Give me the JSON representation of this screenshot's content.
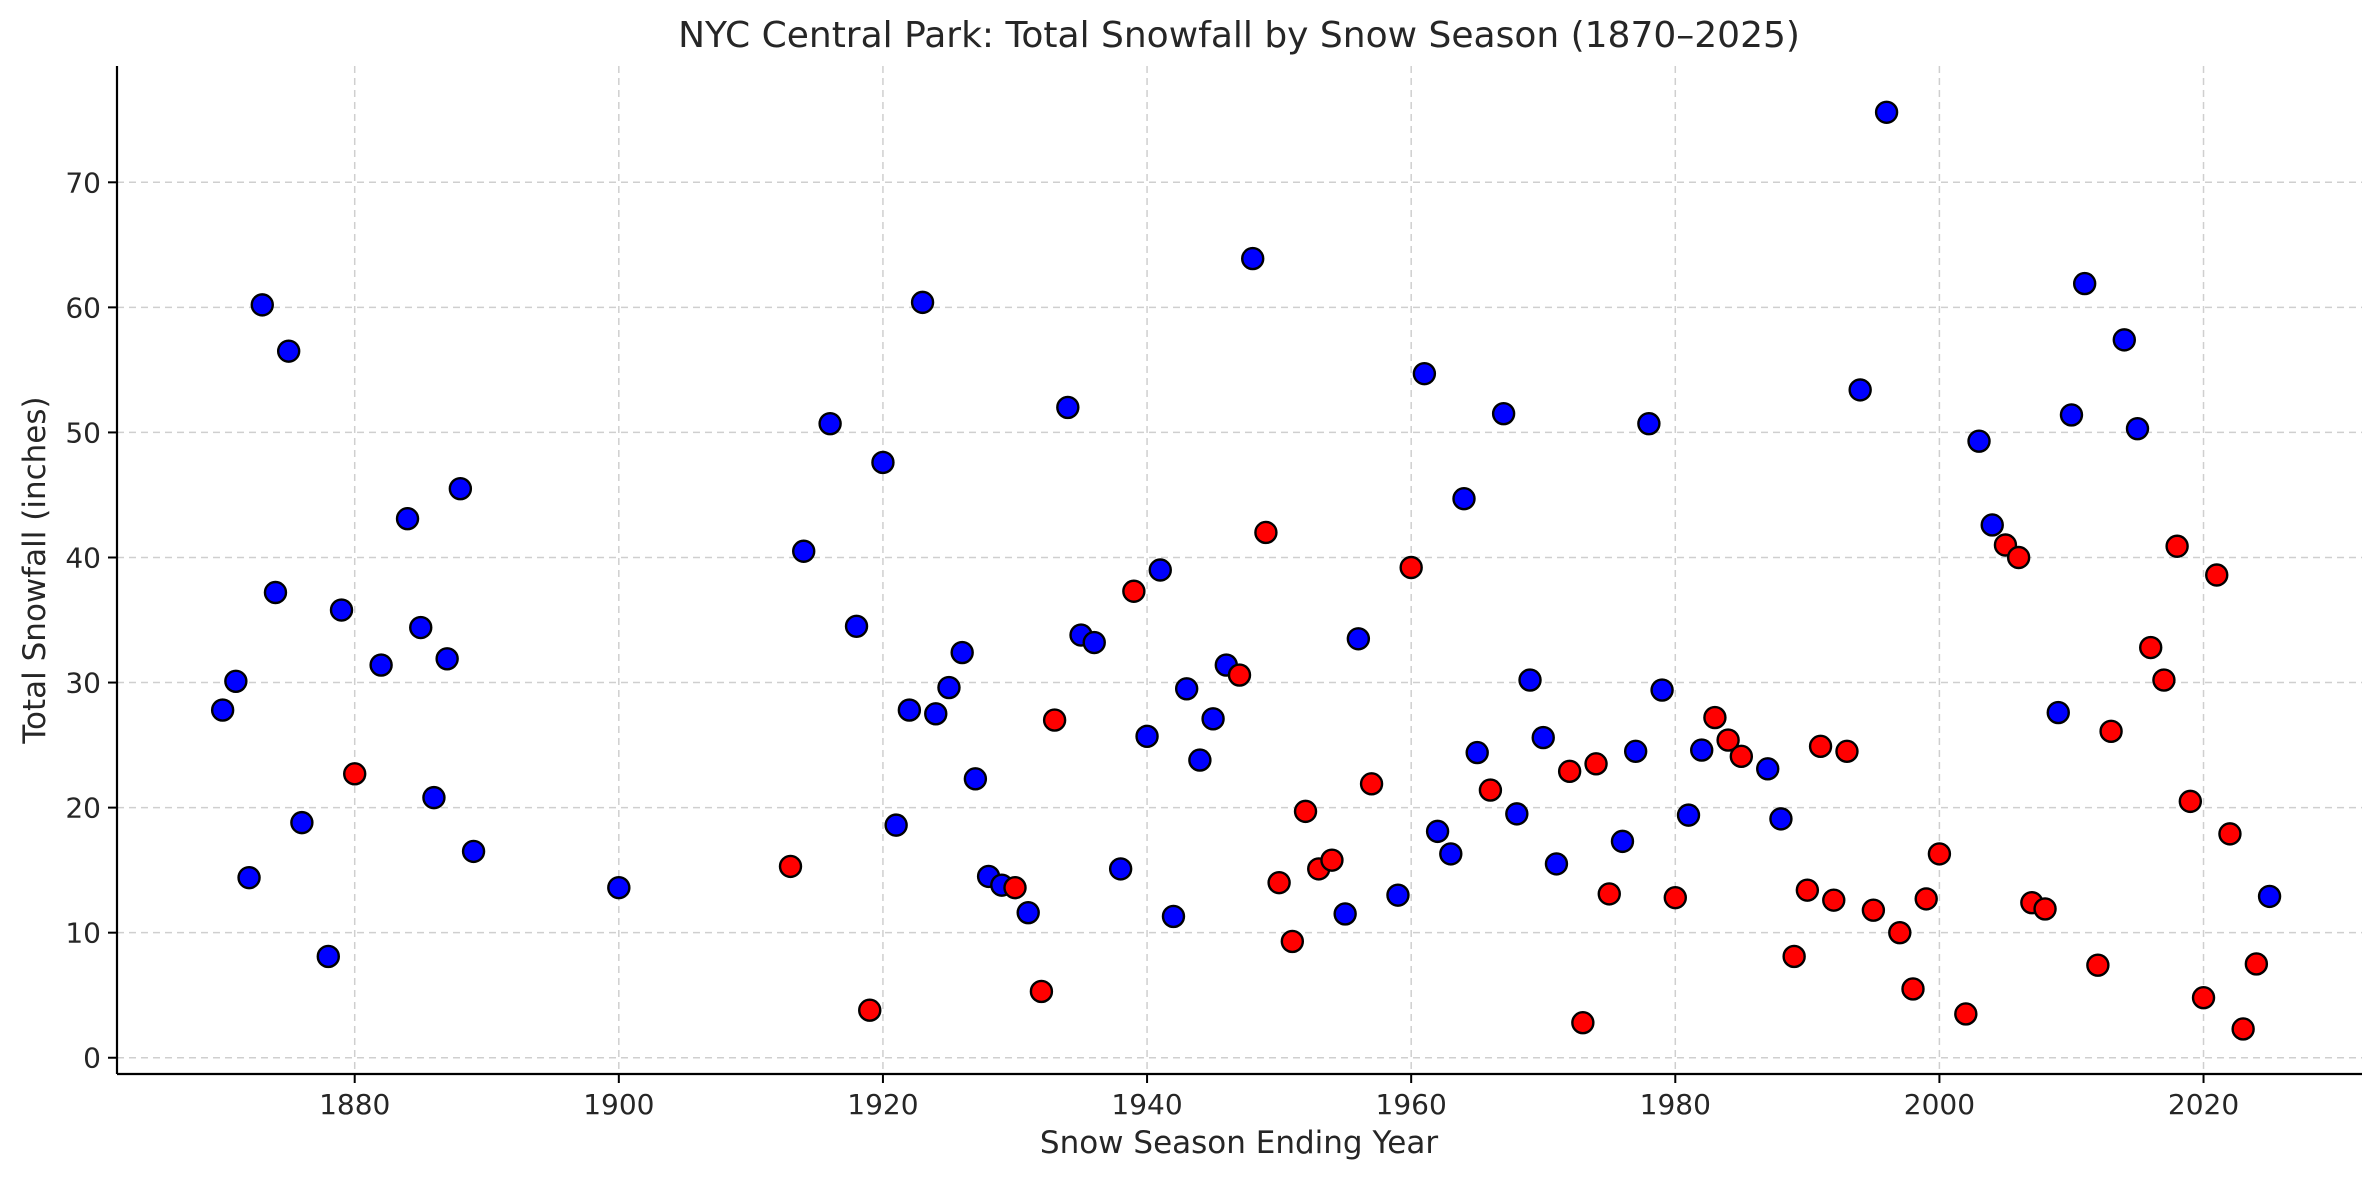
{
  "chart_data": {
    "type": "scatter",
    "title": "NYC Central Park: Total Snowfall by Snow Season (1870–2025)",
    "xlabel": "Snow Season Ending Year",
    "ylabel": "Total Snowfall (inches)",
    "xlim": [
      1862,
      2032
    ],
    "ylim": [
      -1.3,
      79.3
    ],
    "xticks": [
      1880,
      1900,
      1920,
      1940,
      1960,
      1980,
      2000,
      2020
    ],
    "yticks": [
      0,
      10,
      20,
      30,
      40,
      50,
      60,
      70
    ],
    "grid": true,
    "legend": "none",
    "colors": {
      "blue": "#0000ff",
      "red": "#ff0000"
    },
    "series": [
      {
        "name": "blue",
        "color": "#0000ff",
        "points": [
          [
            1870,
            27.8
          ],
          [
            1871,
            30.1
          ],
          [
            1872,
            14.4
          ],
          [
            1873,
            60.2
          ],
          [
            1874,
            37.2
          ],
          [
            1875,
            56.5
          ],
          [
            1876,
            18.8
          ],
          [
            1878,
            8.1
          ],
          [
            1879,
            35.8
          ],
          [
            1882,
            31.4
          ],
          [
            1884,
            43.1
          ],
          [
            1885,
            34.4
          ],
          [
            1886,
            20.8
          ],
          [
            1887,
            31.9
          ],
          [
            1888,
            45.5
          ],
          [
            1889,
            16.5
          ],
          [
            1900,
            13.6
          ],
          [
            1914,
            40.5
          ],
          [
            1916,
            50.7
          ],
          [
            1918,
            34.5
          ],
          [
            1920,
            47.6
          ],
          [
            1921,
            18.6
          ],
          [
            1922,
            27.8
          ],
          [
            1923,
            60.4
          ],
          [
            1924,
            27.5
          ],
          [
            1925,
            29.6
          ],
          [
            1926,
            32.4
          ],
          [
            1927,
            22.3
          ],
          [
            1928,
            14.5
          ],
          [
            1929,
            13.8
          ],
          [
            1931,
            11.6
          ],
          [
            1934,
            52.0
          ],
          [
            1935,
            33.8
          ],
          [
            1936,
            33.2
          ],
          [
            1938,
            15.1
          ],
          [
            1940,
            25.7
          ],
          [
            1941,
            39.0
          ],
          [
            1942,
            11.3
          ],
          [
            1943,
            29.5
          ],
          [
            1944,
            23.8
          ],
          [
            1945,
            27.1
          ],
          [
            1946,
            31.4
          ],
          [
            1948,
            63.9
          ],
          [
            1955,
            11.5
          ],
          [
            1956,
            33.5
          ],
          [
            1959,
            13.0
          ],
          [
            1961,
            54.7
          ],
          [
            1962,
            18.1
          ],
          [
            1963,
            16.3
          ],
          [
            1964,
            44.7
          ],
          [
            1965,
            24.4
          ],
          [
            1967,
            51.5
          ],
          [
            1968,
            19.5
          ],
          [
            1969,
            30.2
          ],
          [
            1970,
            25.6
          ],
          [
            1971,
            15.5
          ],
          [
            1976,
            17.3
          ],
          [
            1977,
            24.5
          ],
          [
            1978,
            50.7
          ],
          [
            1979,
            29.4
          ],
          [
            1981,
            19.4
          ],
          [
            1982,
            24.6
          ],
          [
            1987,
            23.1
          ],
          [
            1988,
            19.1
          ],
          [
            1994,
            53.4
          ],
          [
            1996,
            75.6
          ],
          [
            2003,
            49.3
          ],
          [
            2004,
            42.6
          ],
          [
            2009,
            27.6
          ],
          [
            2010,
            51.4
          ],
          [
            2011,
            61.9
          ],
          [
            2014,
            57.4
          ],
          [
            2015,
            50.3
          ],
          [
            2025,
            12.9
          ]
        ]
      },
      {
        "name": "red",
        "color": "#ff0000",
        "points": [
          [
            1880,
            22.7
          ],
          [
            1913,
            15.3
          ],
          [
            1919,
            3.8
          ],
          [
            1930,
            13.6
          ],
          [
            1932,
            5.3
          ],
          [
            1933,
            27.0
          ],
          [
            1939,
            37.3
          ],
          [
            1947,
            30.6
          ],
          [
            1949,
            42.0
          ],
          [
            1950,
            14.0
          ],
          [
            1951,
            9.3
          ],
          [
            1952,
            19.7
          ],
          [
            1953,
            15.1
          ],
          [
            1954,
            15.8
          ],
          [
            1957,
            21.9
          ],
          [
            1960,
            39.2
          ],
          [
            1966,
            21.4
          ],
          [
            1972,
            22.9
          ],
          [
            1973,
            2.8
          ],
          [
            1974,
            23.5
          ],
          [
            1975,
            13.1
          ],
          [
            1980,
            12.8
          ],
          [
            1983,
            27.2
          ],
          [
            1984,
            25.4
          ],
          [
            1985,
            24.1
          ],
          [
            1989,
            8.1
          ],
          [
            1990,
            13.4
          ],
          [
            1991,
            24.9
          ],
          [
            1992,
            12.6
          ],
          [
            1993,
            24.5
          ],
          [
            1995,
            11.8
          ],
          [
            1997,
            10.0
          ],
          [
            1998,
            5.5
          ],
          [
            1999,
            12.7
          ],
          [
            2000,
            16.3
          ],
          [
            2002,
            3.5
          ],
          [
            2005,
            41.0
          ],
          [
            2006,
            40.0
          ],
          [
            2007,
            12.4
          ],
          [
            2008,
            11.9
          ],
          [
            2012,
            7.4
          ],
          [
            2013,
            26.1
          ],
          [
            2016,
            32.8
          ],
          [
            2017,
            30.2
          ],
          [
            2018,
            40.9
          ],
          [
            2019,
            20.5
          ],
          [
            2020,
            4.8
          ],
          [
            2021,
            38.6
          ],
          [
            2022,
            17.9
          ],
          [
            2023,
            2.3
          ],
          [
            2024,
            7.5
          ]
        ]
      }
    ]
  }
}
